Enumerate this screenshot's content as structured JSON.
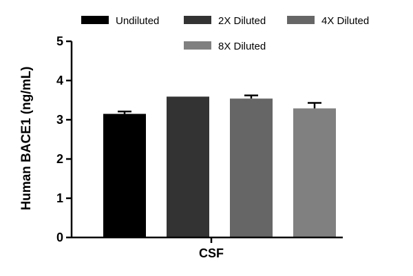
{
  "chart_data": {
    "type": "bar",
    "title": "",
    "xlabel": "",
    "ylabel": "Human BACE1 (ng/mL)",
    "categories": [
      "CSF"
    ],
    "ylim": [
      0,
      5
    ],
    "yticks": [
      0,
      1,
      2,
      3,
      4,
      5
    ],
    "grid": false,
    "legend_placement": "top",
    "series": [
      {
        "name": "Undiluted",
        "values": [
          3.15
        ],
        "error": [
          0.06
        ],
        "color": "#000000"
      },
      {
        "name": "2X Diluted",
        "values": [
          3.59
        ],
        "error": [
          0.0
        ],
        "color": "#333333"
      },
      {
        "name": "4X Diluted",
        "values": [
          3.54
        ],
        "error": [
          0.08
        ],
        "color": "#666666"
      },
      {
        "name": "8X Diluted",
        "values": [
          3.29
        ],
        "error": [
          0.14
        ],
        "color": "#808080"
      }
    ]
  }
}
